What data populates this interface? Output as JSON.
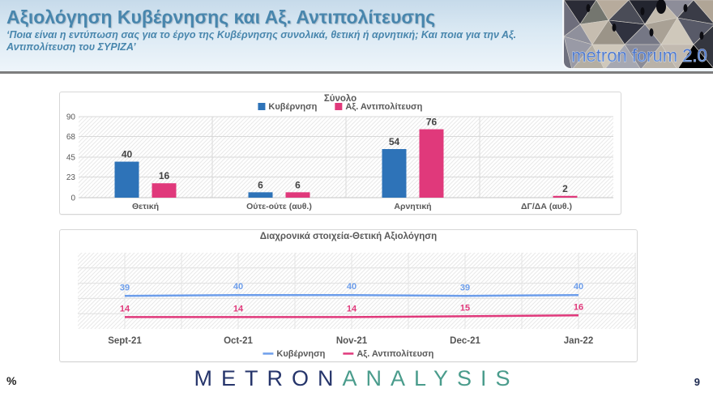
{
  "header": {
    "title": "Αξιολόγηση Κυβέρνησης και Αξ. Αντιπολίτευσης",
    "subtitle": "‘Ποια είναι η εντύπωση σας για το έργο της Κυβέρνησης συνολικά, θετική ή αρνητική; Και ποια για την Αξ. Αντιπολίτευση του ΣΥΡΙΖΑ’",
    "logo_text": "metron forum 2.0"
  },
  "colors": {
    "gov_bar_blue": "#2E73B8",
    "opp_pink": "#E0397B",
    "gov_line_blue": "#6D9EEB",
    "axis_text": "#595959",
    "value_text": "#444444",
    "gridline": "#d9d9d9",
    "hatch": "#e9e9e9",
    "title_blue": "#4886ad"
  },
  "chart_data": [
    {
      "type": "bar",
      "title": "Σύνολο",
      "categories": [
        "Θετική",
        "Ούτε-ούτε (αυθ.)",
        "Αρνητική",
        "ΔΓ/ΔΑ (αυθ.)"
      ],
      "series": [
        {
          "name": "Κυβέρνηση",
          "color": "#2E73B8",
          "values": [
            40,
            6,
            54,
            null
          ]
        },
        {
          "name": "Αξ. Αντιπολίτευση",
          "color": "#E0397B",
          "values": [
            16,
            6,
            76,
            2
          ]
        }
      ],
      "ylim": [
        0,
        90
      ],
      "yticks": [
        0,
        23,
        45,
        68,
        90
      ],
      "grid": true,
      "legend_position": "top"
    },
    {
      "type": "line",
      "title": "Διαχρονικά στοιχεία-Θετική Αξιολόγηση",
      "categories": [
        "Sept-21",
        "Oct-21",
        "Nov-21",
        "Dec-21",
        "Jan-22"
      ],
      "series": [
        {
          "name": "Κυβέρνηση",
          "color": "#6D9EEB",
          "values": [
            39,
            40,
            40,
            39,
            40
          ]
        },
        {
          "name": "Αξ. Αντιπολίτευση",
          "color": "#E0397B",
          "values": [
            14,
            14,
            14,
            15,
            16
          ]
        }
      ],
      "ylim": [
        0,
        90
      ],
      "grid": true,
      "legend_position": "bottom"
    }
  ],
  "footer": {
    "unit_label": "%",
    "page_number": "9",
    "brand_part1": "METRON",
    "brand_part2": "ANALYSIS"
  }
}
